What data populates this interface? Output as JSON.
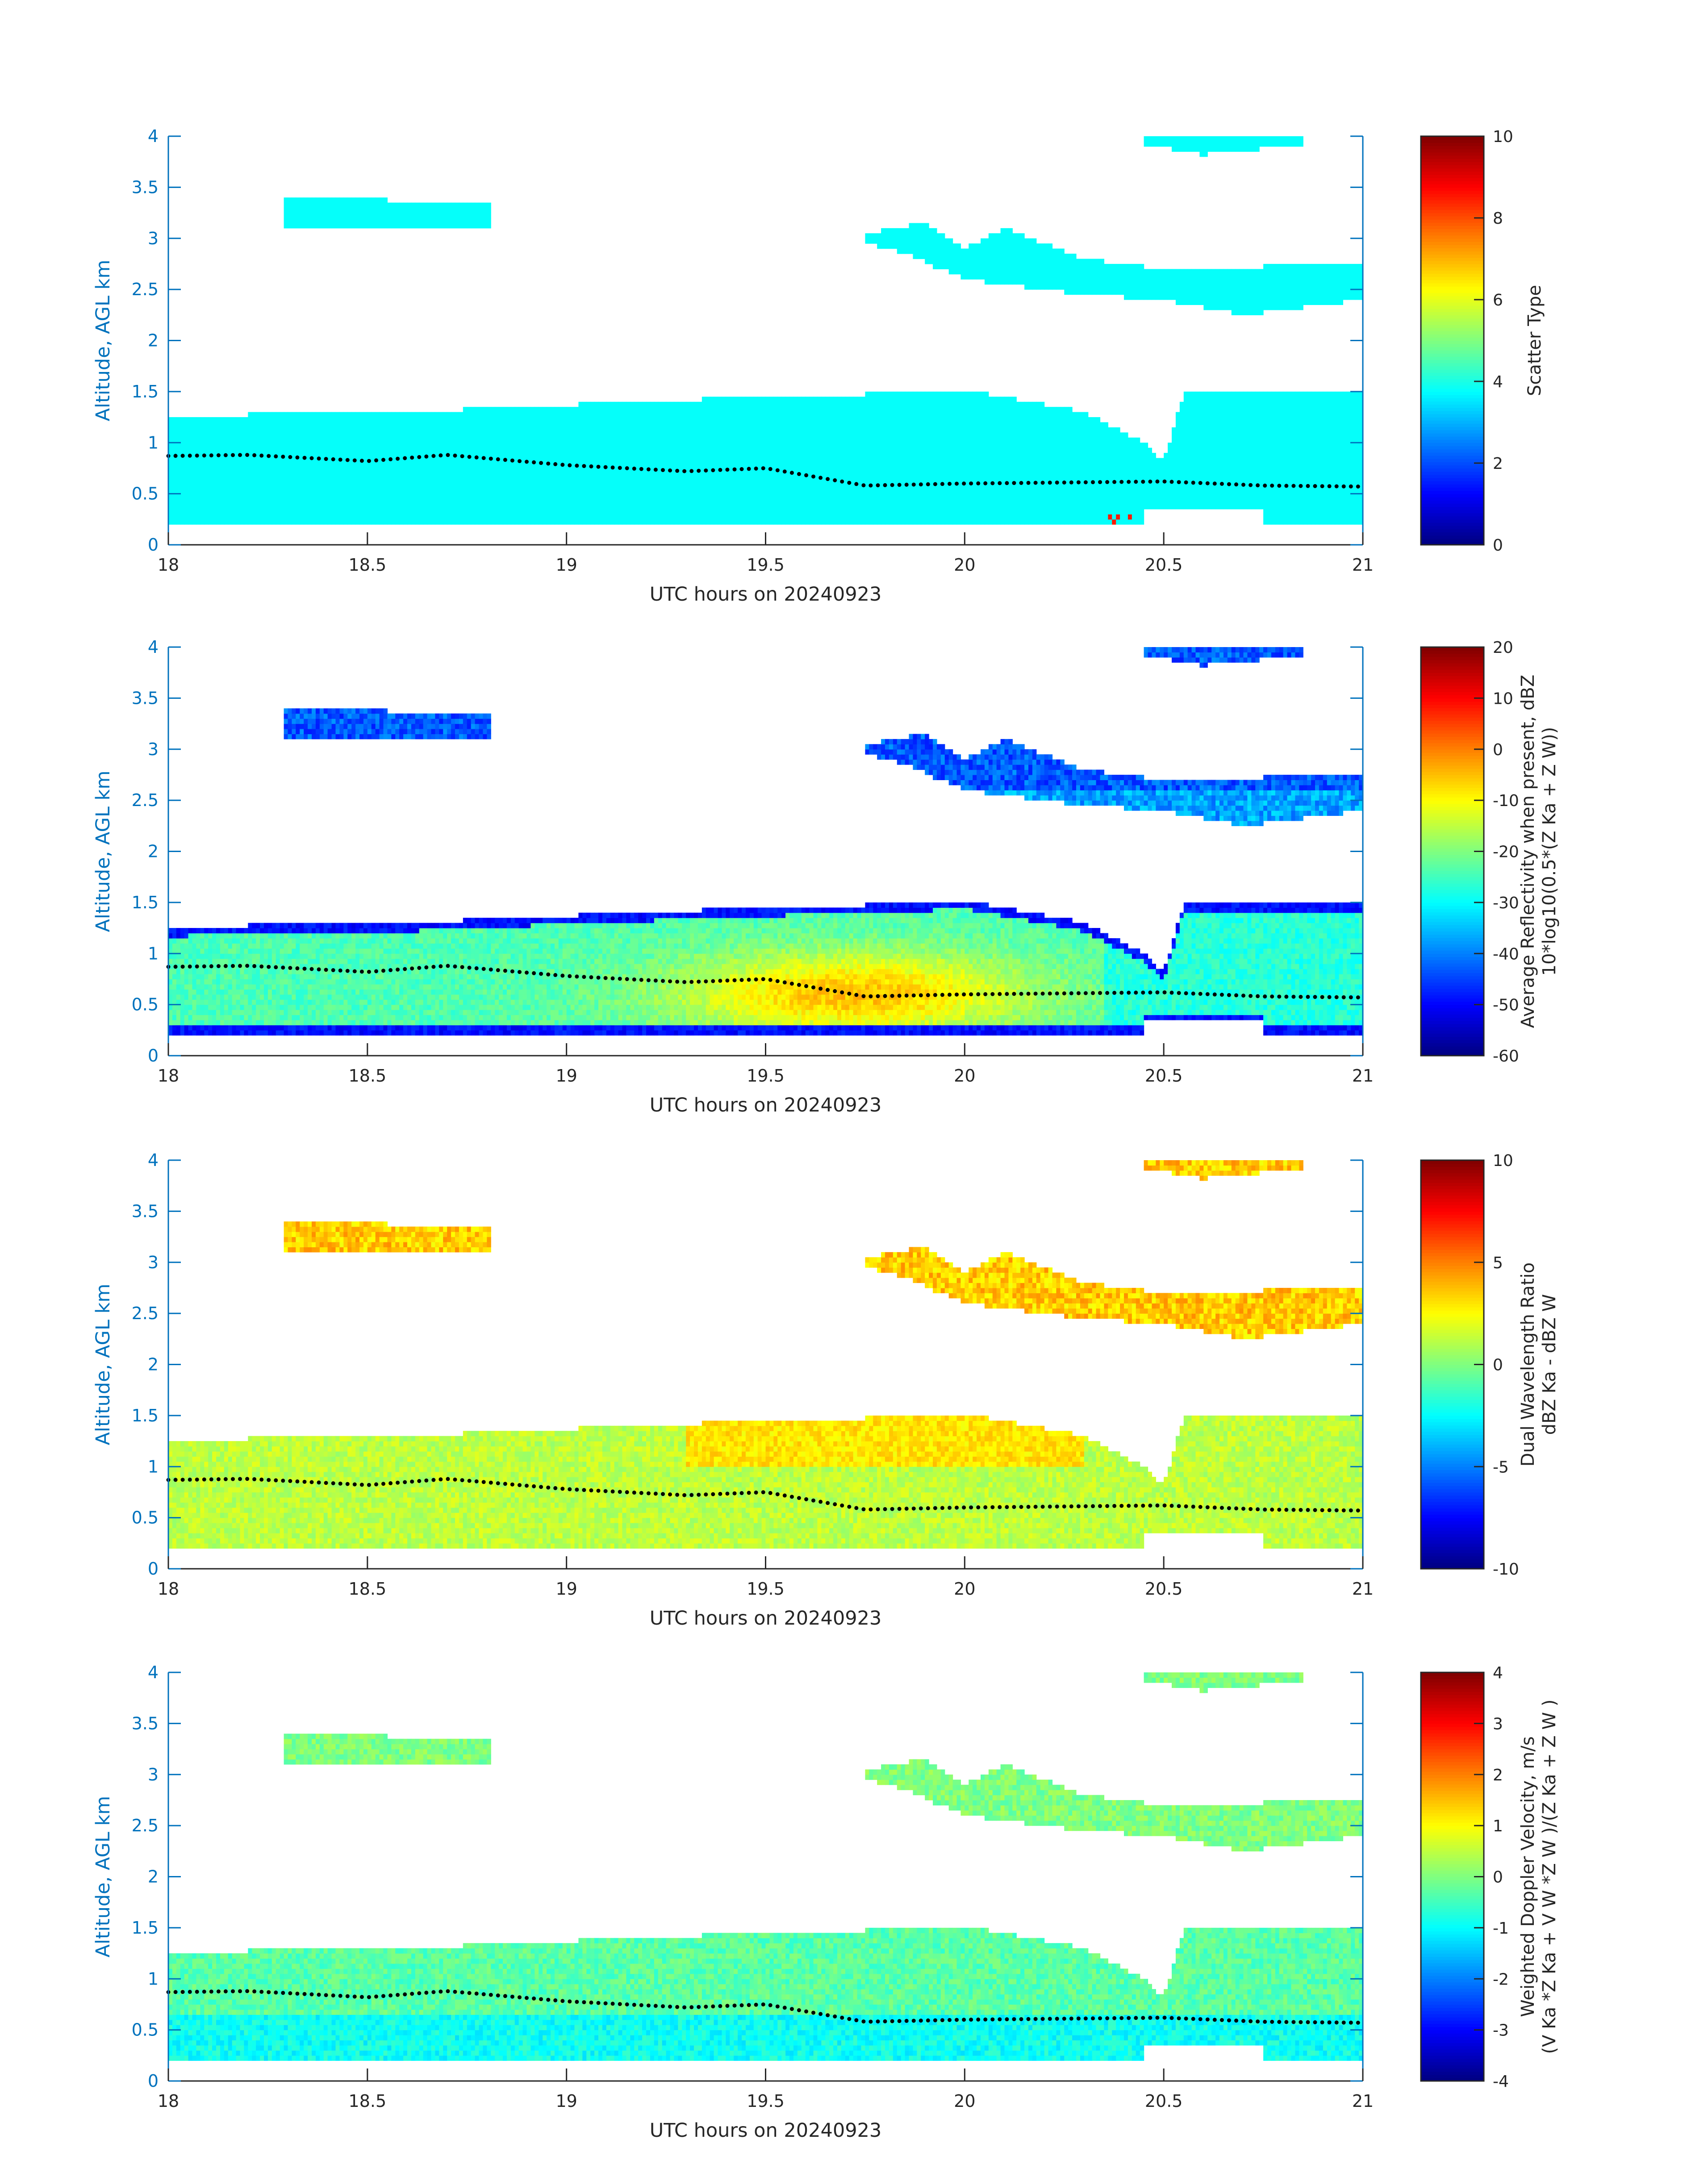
{
  "figure": {
    "x_label": "UTC hours on 20240923",
    "y_label": "Altitude, AGL km",
    "x_ticks": [
      "18",
      "18.5",
      "19",
      "19.5",
      "20",
      "20.5",
      "21"
    ],
    "y_ticks": [
      "0",
      "0.5",
      "1",
      "1.5",
      "2",
      "2.5",
      "3",
      "3.5",
      "4"
    ],
    "axis_color": "#0072bd",
    "colormap": "jet"
  },
  "panels": [
    {
      "cb_label_lines": [
        "Scatter Type"
      ],
      "cb_ticks": [
        "0",
        "2",
        "4",
        "6",
        "8",
        "10"
      ]
    },
    {
      "cb_label_lines": [
        "Average Reflectivity when present, dBZ",
        "10*log10(0.5*(Z Ka + Z W))"
      ],
      "cb_ticks": [
        "-60",
        "-50",
        "-40",
        "-30",
        "-20",
        "-10",
        "0",
        "10",
        "20"
      ]
    },
    {
      "cb_label_lines": [
        "Dual Wavelength Ratio",
        "dBZ Ka - dBZ W"
      ],
      "cb_ticks": [
        "-10",
        "-5",
        "0",
        "5",
        "10"
      ]
    },
    {
      "cb_label_lines": [
        "Weighted Doppler Velocity, m/s",
        "(V Ka *Z Ka + V W *Z W )/(Z Ka + Z W )"
      ],
      "cb_ticks": [
        "-4",
        "-3",
        "-2",
        "-1",
        "0",
        "1",
        "2",
        "3",
        "4"
      ]
    }
  ],
  "chart_data": [
    {
      "type": "heatmap",
      "xlabel": "UTC hours on 20240923",
      "ylabel": "Altitude, AGL km",
      "xlim": [
        18,
        21
      ],
      "ylim": [
        0,
        4
      ],
      "clim": [
        0,
        10
      ],
      "colorbar_label": "Scatter Type",
      "cloud_layers": [
        {
          "x": [
            18.0,
            21.0
          ],
          "base_km": [
            0.2,
            0.2
          ],
          "top_km": [
            1.25,
            1.5
          ]
        },
        {
          "x": [
            18.3,
            18.8
          ],
          "base_km": [
            3.1,
            3.1
          ],
          "top_km": [
            3.4,
            3.35
          ]
        },
        {
          "x": [
            19.75,
            21.0
          ],
          "base_km": [
            2.3,
            2.35
          ],
          "top_km": [
            3.1,
            2.75
          ]
        },
        {
          "x": [
            20.45,
            20.85
          ],
          "base_km": [
            3.85,
            3.85
          ],
          "top_km": [
            4.0,
            4.0
          ]
        }
      ],
      "dotted_line_km": {
        "x": [
          18.0,
          18.2,
          18.5,
          18.7,
          19.0,
          19.3,
          19.5,
          19.75,
          20.0,
          20.5,
          20.75,
          21.0
        ],
        "y": [
          0.87,
          0.88,
          0.82,
          0.88,
          0.78,
          0.72,
          0.75,
          0.58,
          0.6,
          0.62,
          0.58,
          0.57
        ]
      },
      "dominant_value": 3.8
    },
    {
      "type": "heatmap",
      "xlabel": "UTC hours on 20240923",
      "ylabel": "Altitude, AGL km",
      "xlim": [
        18,
        21
      ],
      "ylim": [
        0,
        4
      ],
      "clim": [
        -60,
        20
      ],
      "colorbar_label": "Average Reflectivity when present, dBZ 10*log10(0.5*(Z Ka + Z W))",
      "peak_value_dBZ": -5,
      "peak_location": {
        "x": 19.72,
        "y_km": 0.6
      },
      "upper_layers_dBZ": -40
    },
    {
      "type": "heatmap",
      "xlabel": "UTC hours on 20240923",
      "ylabel": "Altitude, AGL km",
      "xlim": [
        18,
        21
      ],
      "ylim": [
        0,
        4
      ],
      "clim": [
        -10,
        10
      ],
      "colorbar_label": "Dual Wavelength Ratio dBZ Ka - dBZ W",
      "typical_value_dB": 1.5,
      "upper_region_value_dB": 3.5
    },
    {
      "type": "heatmap",
      "xlabel": "UTC hours on 20240923",
      "ylabel": "Altitude, AGL km",
      "xlim": [
        18,
        21
      ],
      "ylim": [
        0,
        4
      ],
      "clim": [
        -4,
        4
      ],
      "colorbar_label": "Weighted Doppler Velocity, m/s (V Ka *Z Ka + V W *Z W )/(Z Ka + Z W )",
      "typical_value_ms": -0.3,
      "low_level_value_ms": -1.0
    }
  ]
}
